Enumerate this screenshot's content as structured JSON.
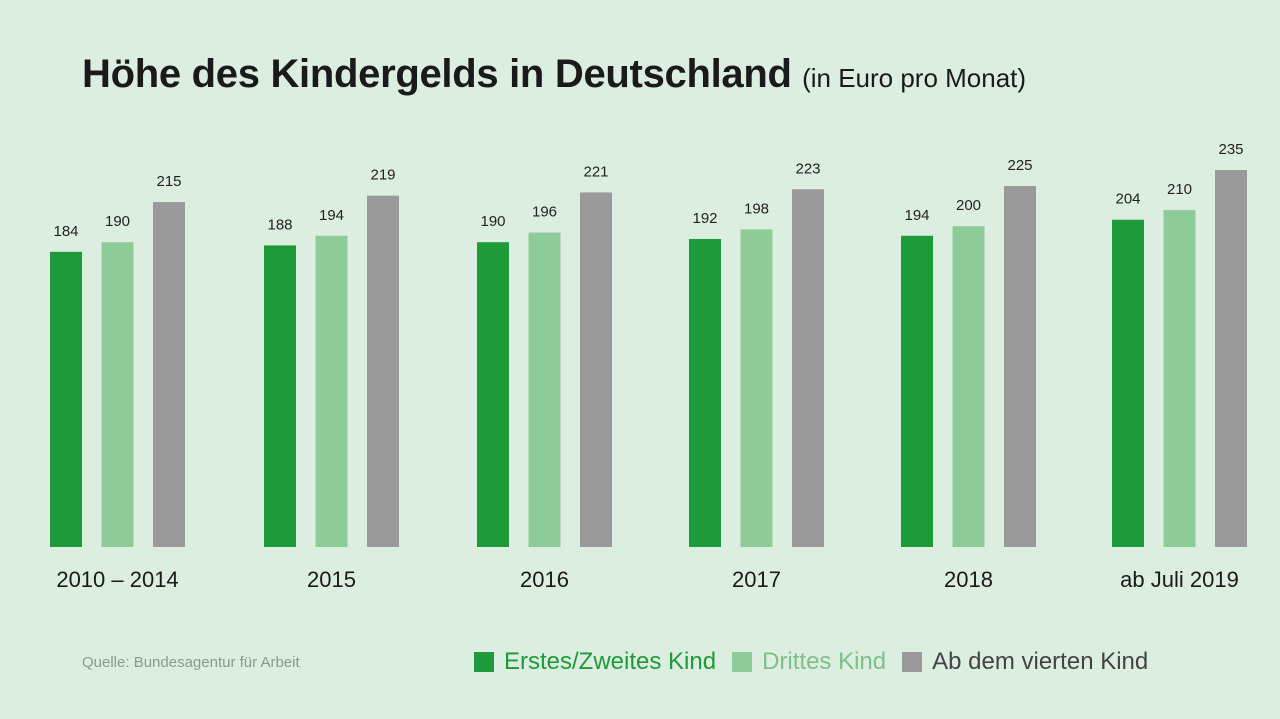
{
  "header": {
    "title": "Höhe des Kindergelds in Deutschland",
    "subtitle": "(in Euro pro Monat)"
  },
  "source": "Quelle: Bundesagentur für Arbeit",
  "colors": {
    "first_second": "#1f9a3a",
    "third": "#8fcb99",
    "fourth": "#9a9a9a",
    "background": "#dceee0"
  },
  "legend": [
    {
      "label": "Erstes/Zweites Kind",
      "color": "#1f9a3a",
      "text_color": "#1f9a3a"
    },
    {
      "label": "Drittes Kind",
      "color": "#8fcb99",
      "text_color": "#7fbf8a"
    },
    {
      "label": "Ab dem vierten Kind",
      "color": "#9a9a9a",
      "text_color": "#444444"
    }
  ],
  "chart_data": {
    "type": "bar",
    "categories": [
      "2010 – 2014",
      "2015",
      "2016",
      "2017",
      "2018",
      "ab Juli 2019"
    ],
    "series": [
      {
        "name": "Erstes/Zweites Kind",
        "values": [
          184,
          188,
          190,
          192,
          194,
          204
        ]
      },
      {
        "name": "Drittes Kind",
        "values": [
          190,
          194,
          196,
          198,
          200,
          210
        ]
      },
      {
        "name": "Ab dem vierten Kind",
        "values": [
          215,
          219,
          221,
          223,
          225,
          235
        ]
      }
    ],
    "ylim": [
      0,
      235
    ],
    "grid": false,
    "legend_position": "bottom-right",
    "data_labels": true
  }
}
